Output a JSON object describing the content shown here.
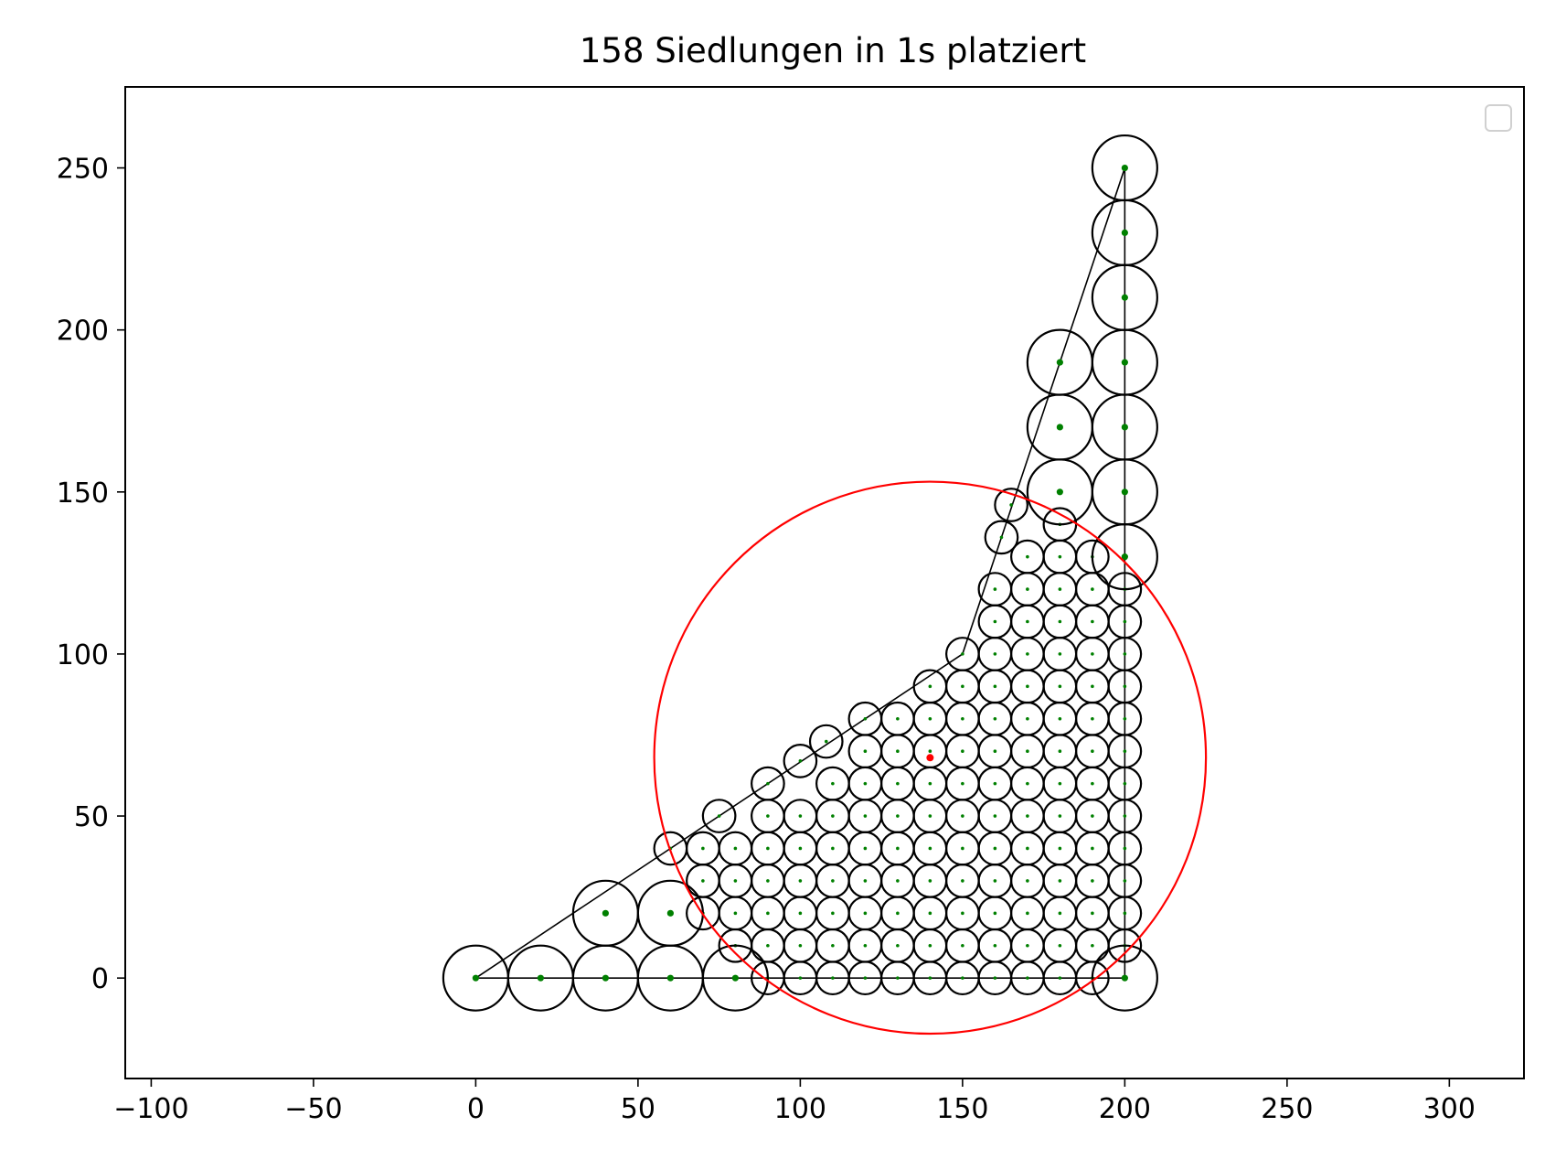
{
  "chart_data": {
    "type": "scatter",
    "title": "158 Siedlungen in 1s platziert",
    "xlabel": "",
    "ylabel": "",
    "xlim": [
      -108,
      323
    ],
    "ylim": [
      -31,
      275
    ],
    "xticks": [
      -100,
      -50,
      0,
      50,
      100,
      150,
      200,
      250,
      300
    ],
    "xtick_labels": [
      "−100",
      "−50",
      "0",
      "50",
      "100",
      "150",
      "200",
      "250",
      "300"
    ],
    "yticks": [
      0,
      50,
      100,
      150,
      200,
      250
    ],
    "ytick_labels": [
      "0",
      "50",
      "100",
      "150",
      "200",
      "250"
    ],
    "grid": false,
    "legend": {
      "placement": "upper right",
      "entries": []
    },
    "colors": {
      "circles": "#000000",
      "points": "#008000",
      "center": "#ff0000",
      "outline": "#000000"
    },
    "outline": [
      [
        0,
        0
      ],
      [
        200,
        0
      ],
      [
        200,
        250
      ],
      [
        150,
        100
      ],
      [
        0,
        0
      ]
    ],
    "big_circle": {
      "center": [
        140,
        68
      ],
      "radius": 85
    },
    "large_settlements": {
      "radius": 10,
      "points": [
        [
          0,
          0
        ],
        [
          20,
          0
        ],
        [
          40,
          0
        ],
        [
          60,
          0
        ],
        [
          80,
          0
        ],
        [
          40,
          20
        ],
        [
          60,
          20
        ],
        [
          200,
          0
        ],
        [
          200,
          130
        ],
        [
          200,
          150
        ],
        [
          200,
          170
        ],
        [
          200,
          190
        ],
        [
          200,
          210
        ],
        [
          200,
          230
        ],
        [
          200,
          250
        ],
        [
          180,
          150
        ],
        [
          180,
          170
        ],
        [
          180,
          190
        ]
      ]
    },
    "small_settlements": {
      "radius": 5,
      "points": [
        [
          90,
          0
        ],
        [
          100,
          0
        ],
        [
          110,
          0
        ],
        [
          120,
          0
        ],
        [
          130,
          0
        ],
        [
          140,
          0
        ],
        [
          150,
          0
        ],
        [
          160,
          0
        ],
        [
          170,
          0
        ],
        [
          180,
          0
        ],
        [
          190,
          0
        ],
        [
          80,
          10
        ],
        [
          90,
          10
        ],
        [
          100,
          10
        ],
        [
          110,
          10
        ],
        [
          120,
          10
        ],
        [
          130,
          10
        ],
        [
          140,
          10
        ],
        [
          150,
          10
        ],
        [
          160,
          10
        ],
        [
          170,
          10
        ],
        [
          180,
          10
        ],
        [
          190,
          10
        ],
        [
          200,
          10
        ],
        [
          70,
          20
        ],
        [
          80,
          20
        ],
        [
          90,
          20
        ],
        [
          100,
          20
        ],
        [
          110,
          20
        ],
        [
          120,
          20
        ],
        [
          130,
          20
        ],
        [
          140,
          20
        ],
        [
          150,
          20
        ],
        [
          160,
          20
        ],
        [
          170,
          20
        ],
        [
          180,
          20
        ],
        [
          190,
          20
        ],
        [
          200,
          20
        ],
        [
          70,
          30
        ],
        [
          80,
          30
        ],
        [
          90,
          30
        ],
        [
          100,
          30
        ],
        [
          110,
          30
        ],
        [
          120,
          30
        ],
        [
          130,
          30
        ],
        [
          140,
          30
        ],
        [
          150,
          30
        ],
        [
          160,
          30
        ],
        [
          170,
          30
        ],
        [
          180,
          30
        ],
        [
          190,
          30
        ],
        [
          200,
          30
        ],
        [
          60,
          40
        ],
        [
          70,
          40
        ],
        [
          80,
          40
        ],
        [
          90,
          40
        ],
        [
          100,
          40
        ],
        [
          110,
          40
        ],
        [
          120,
          40
        ],
        [
          130,
          40
        ],
        [
          140,
          40
        ],
        [
          150,
          40
        ],
        [
          160,
          40
        ],
        [
          170,
          40
        ],
        [
          180,
          40
        ],
        [
          190,
          40
        ],
        [
          200,
          40
        ],
        [
          75,
          50
        ],
        [
          90,
          50
        ],
        [
          100,
          50
        ],
        [
          110,
          50
        ],
        [
          120,
          50
        ],
        [
          130,
          50
        ],
        [
          140,
          50
        ],
        [
          150,
          50
        ],
        [
          160,
          50
        ],
        [
          170,
          50
        ],
        [
          180,
          50
        ],
        [
          190,
          50
        ],
        [
          200,
          50
        ],
        [
          90,
          60
        ],
        [
          110,
          60
        ],
        [
          120,
          60
        ],
        [
          130,
          60
        ],
        [
          140,
          60
        ],
        [
          150,
          60
        ],
        [
          160,
          60
        ],
        [
          170,
          60
        ],
        [
          180,
          60
        ],
        [
          190,
          60
        ],
        [
          200,
          60
        ],
        [
          100,
          67
        ],
        [
          120,
          70
        ],
        [
          130,
          70
        ],
        [
          140,
          70
        ],
        [
          150,
          70
        ],
        [
          160,
          70
        ],
        [
          170,
          70
        ],
        [
          180,
          70
        ],
        [
          190,
          70
        ],
        [
          200,
          70
        ],
        [
          108,
          73
        ],
        [
          120,
          80
        ],
        [
          130,
          80
        ],
        [
          140,
          80
        ],
        [
          150,
          80
        ],
        [
          160,
          80
        ],
        [
          170,
          80
        ],
        [
          180,
          80
        ],
        [
          190,
          80
        ],
        [
          200,
          80
        ],
        [
          140,
          90
        ],
        [
          150,
          90
        ],
        [
          160,
          90
        ],
        [
          170,
          90
        ],
        [
          180,
          90
        ],
        [
          190,
          90
        ],
        [
          200,
          90
        ],
        [
          150,
          100
        ],
        [
          160,
          100
        ],
        [
          170,
          100
        ],
        [
          180,
          100
        ],
        [
          190,
          100
        ],
        [
          200,
          100
        ],
        [
          160,
          110
        ],
        [
          170,
          110
        ],
        [
          180,
          110
        ],
        [
          190,
          110
        ],
        [
          200,
          110
        ],
        [
          160,
          120
        ],
        [
          170,
          120
        ],
        [
          180,
          120
        ],
        [
          190,
          120
        ],
        [
          200,
          120
        ],
        [
          170,
          130
        ],
        [
          180,
          130
        ],
        [
          190,
          130
        ],
        [
          162,
          136
        ],
        [
          180,
          140
        ],
        [
          165,
          146
        ]
      ]
    }
  }
}
